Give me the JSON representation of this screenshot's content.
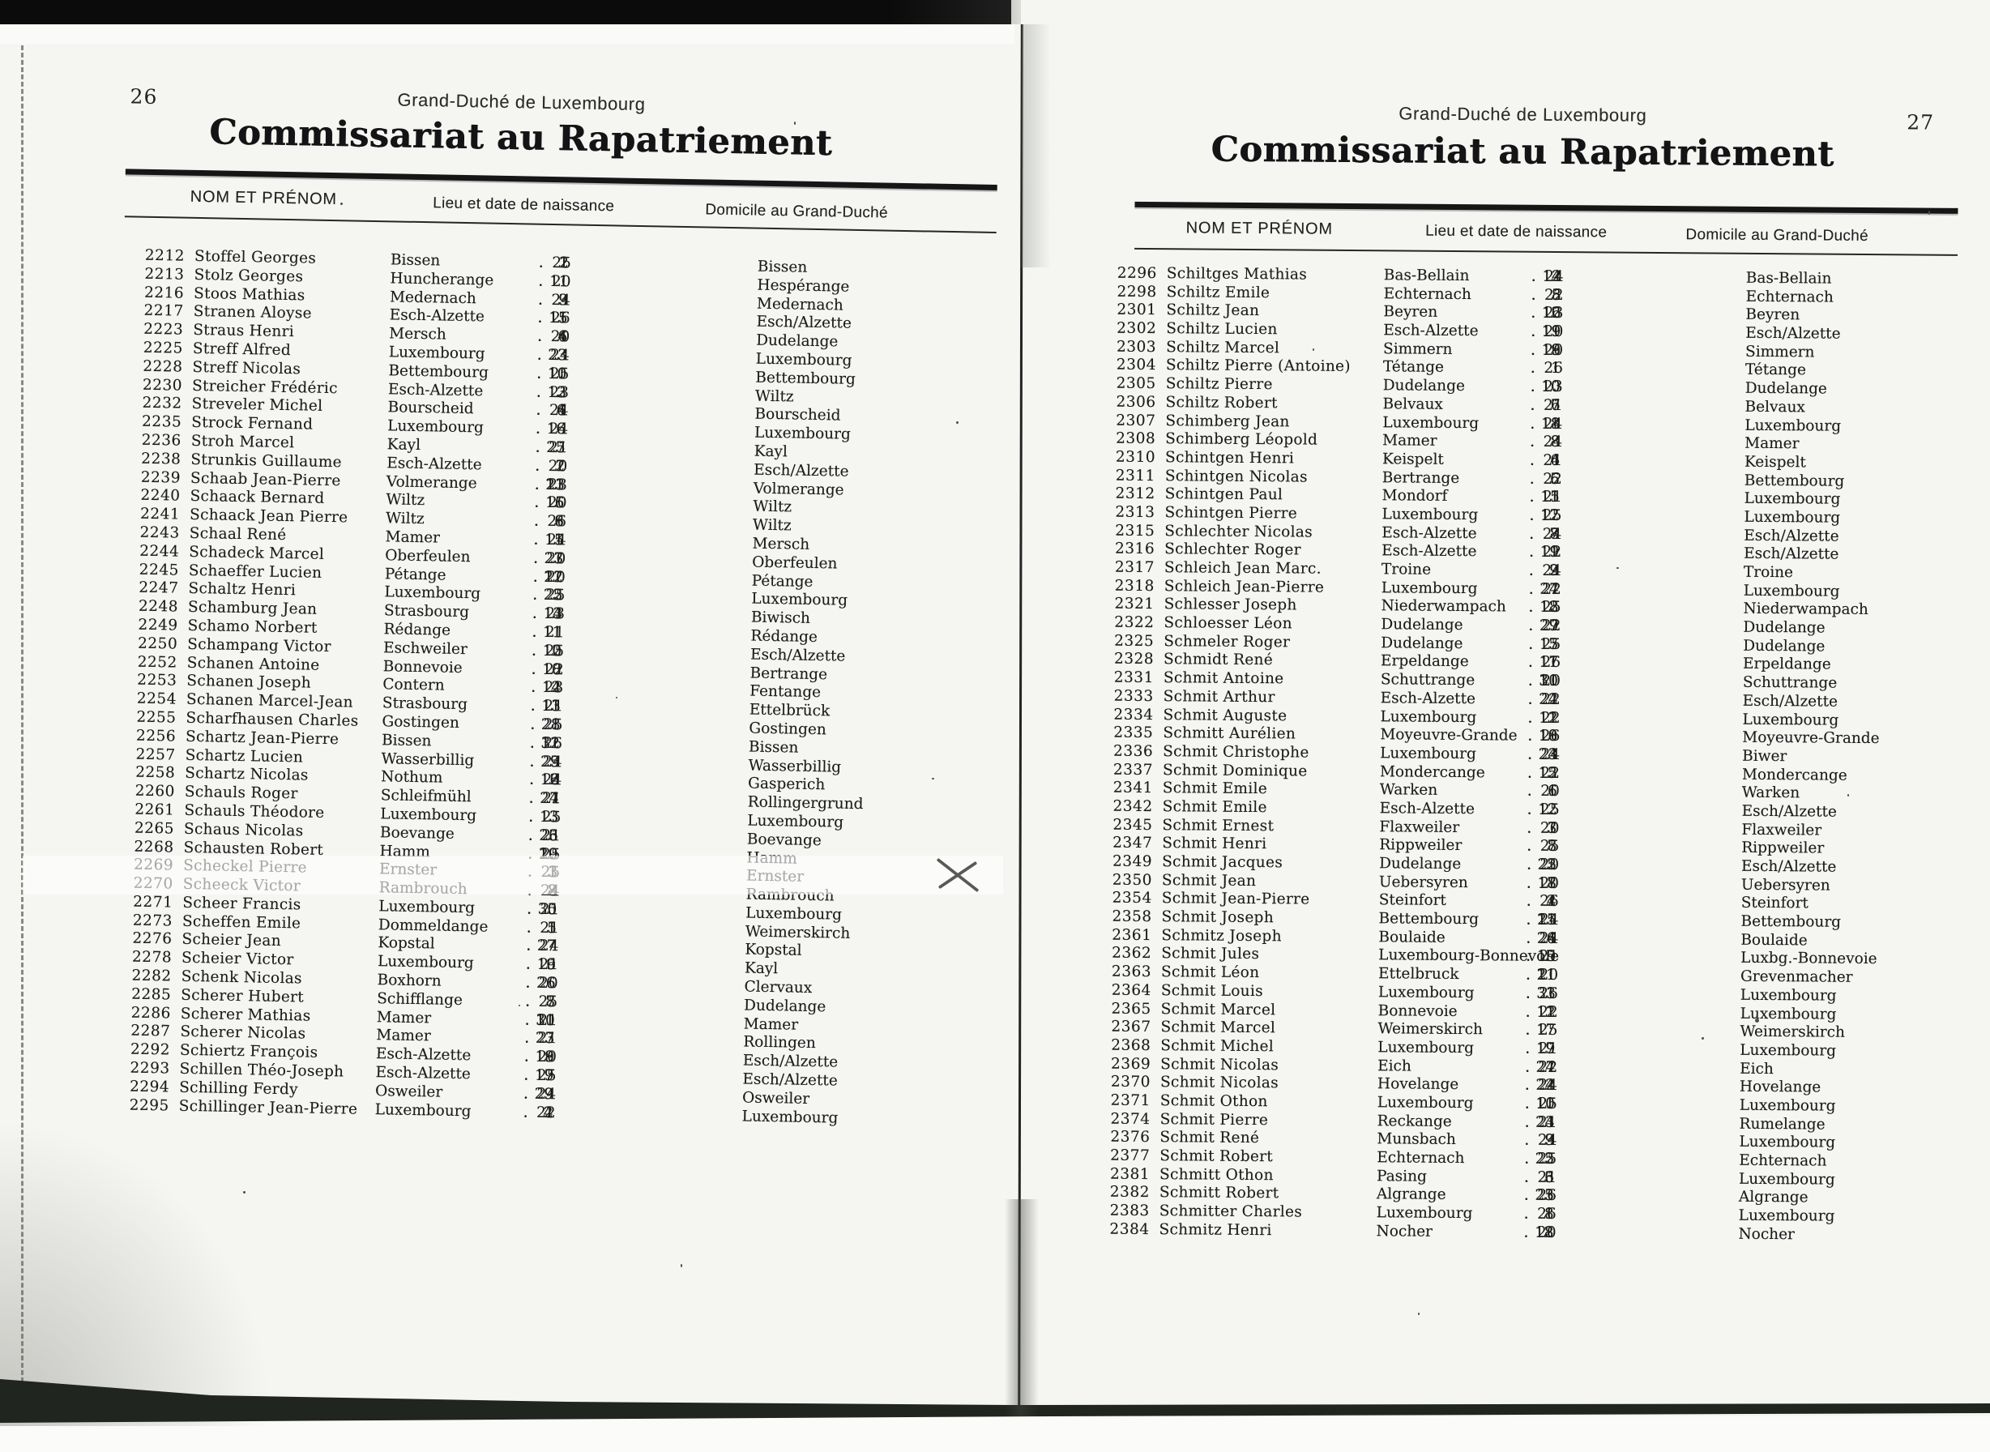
{
  "pages": [
    {
      "page_number": "26",
      "running_head": "Grand-Duché de Luxembourg",
      "title": "Commissariat au Rapatriement",
      "columns": {
        "name": "NOM ET PRÉNOM",
        "birth": "Lieu et date de naissance",
        "domicile": "Domicile au Grand-Duché"
      },
      "rows": [
        [
          "2212",
          "Stoffel Georges",
          "Bissen",
          "2. 1. 25",
          "Bissen"
        ],
        [
          "2213",
          "Stolz Georges",
          "Huncherange",
          "1. 11. 20",
          "Hespérange"
        ],
        [
          "2216",
          "Stoos Mathias",
          "Medernach",
          "9. 3. 24",
          "Medernach"
        ],
        [
          "2217",
          "Stranen Aloyse",
          "Esch-Alzette",
          "15. 11. 26",
          "Esch/Alzette"
        ],
        [
          "2223",
          "Straus Henri",
          "Mersch",
          "4. 6. 20",
          "Dudelange"
        ],
        [
          "2225",
          "Streff Alfred",
          "Luxembourg",
          "23. 3. 24",
          "Luxembourg"
        ],
        [
          "2228",
          "Streff Nicolas",
          "Bettembourg",
          "10. 11. 25",
          "Bettembourg"
        ],
        [
          "2230",
          "Streicher Frédéric",
          "Esch-Alzette",
          "3. 12. 23",
          "Wiltz"
        ],
        [
          "2232",
          "Streveler Michel",
          "Bourscheid",
          "6. 4. 24",
          "Bourscheid"
        ],
        [
          "2235",
          "Strock Fernand",
          "Luxembourg",
          "16. 6. 24",
          "Luxembourg"
        ],
        [
          "2236",
          "Stroh Marcel",
          "Kayl",
          "27. 5. 21",
          "Kayl"
        ],
        [
          "2238",
          "Strunkis Guillaume",
          "Esch-Alzette",
          "7. 2. 20",
          "Esch/Alzette"
        ],
        [
          "2239",
          "Schaab Jean-Pierre",
          "Volmerange",
          "23. 11. 23",
          "Volmerange"
        ],
        [
          "2240",
          "Schaack Bernard",
          "Wiltz",
          "15. 6. 20",
          "Wiltz"
        ],
        [
          "2241",
          "Schaack Jean Pierre",
          "Wiltz",
          "6. 8. 26",
          "Wiltz"
        ],
        [
          "2243",
          "Schaal René",
          "Mamer",
          "15. 1. 24",
          "Mersch"
        ],
        [
          "2244",
          "Schadeck Marcel",
          "Oberfeulen",
          "27. 3. 20",
          "Oberfeulen"
        ],
        [
          "2245",
          "Schaeffer Lucien",
          "Pétange",
          "27. 12. 20",
          "Pétange"
        ],
        [
          "2247",
          "Schaltz Henri",
          "Luxembourg",
          "22. 5. 25",
          "Luxembourg"
        ],
        [
          "2248",
          "Schamburg Jean",
          "Strasbourg",
          "13. 4. 23",
          "Biwisch"
        ],
        [
          "2249",
          "Schamo Norbert",
          "Rédange",
          "1. 11. 21",
          "Rédange"
        ],
        [
          "2250",
          "Schampang Victor",
          "Eschweiler",
          "2. 10. 25",
          "Esch/Alzette"
        ],
        [
          "2252",
          "Schanen Antoine",
          "Bonnevoie",
          "8. 10. 22",
          "Bertrange"
        ],
        [
          "2253",
          "Schanen Joseph",
          "Contern",
          "12. 4. 23",
          "Fentange"
        ],
        [
          "2254",
          "Schanen Marcel-Jean",
          "Strasbourg",
          "13. 11. 21",
          "Ettelbrück"
        ],
        [
          "2255",
          "Scharfhausen Charles",
          "Gostingen",
          "28. 1. 25",
          "Gostingen"
        ],
        [
          "2256",
          "Schartz Jean-Pierre",
          "Bissen",
          "31. 12. 26",
          "Bissen"
        ],
        [
          "2257",
          "Schartz Lucien",
          "Wasserbillig",
          "29. 5. 24",
          "Wasserbillig"
        ],
        [
          "2258",
          "Schartz Nicolas",
          "Nothum",
          "12. 6. 24",
          "Gasperich"
        ],
        [
          "2260",
          "Schauls Roger",
          "Schleifmühl",
          "27. 4. 21",
          "Rollingergrund"
        ],
        [
          "2261",
          "Schauls Théodore",
          "Luxembourg",
          "13. 3. 25",
          "Luxembourg"
        ],
        [
          "2265",
          "Schaus Nicolas",
          "Boevange",
          "26. 3. 21",
          "Boevange"
        ],
        [
          "2268",
          "Schausten Robert",
          "Hamm",
          "29. 10. 25",
          "Hamm"
        ],
        [
          "2269",
          "Scheckel Pierre",
          "Ernster",
          "1. 3. 25",
          "Ernster"
        ],
        [
          "2270",
          "Scheeck Victor",
          "Rambrouch",
          "8. 2. 24",
          "Rambrouch"
        ],
        [
          "2271",
          "Scheer Francis",
          "Luxembourg",
          "30. 5. 21",
          "Luxembourg"
        ],
        [
          "2273",
          "Scheffen Emile",
          "Dommeldange",
          "5. 1. 21",
          "Weimerskirch"
        ],
        [
          "2276",
          "Scheier Jean",
          "Kopstal",
          "27. 7. 24",
          "Kopstal"
        ],
        [
          "2278",
          "Scheier Victor",
          "Luxembourg",
          "16. 9. 21",
          "Kayl"
        ],
        [
          "2282",
          "Schenk Nicolas",
          "Boxhorn",
          "26. 6. 20",
          "Clervaux"
        ],
        [
          "2285",
          "Scherer Hubert",
          "Schifflange",
          "8. 7. 25",
          "Dudelange"
        ],
        [
          "2286",
          "Scherer Mathias",
          "Mamer",
          "30. 11. 21",
          "Mamer"
        ],
        [
          "2287",
          "Scherer Nicolas",
          "Mamer",
          "27. 3. 21",
          "Rollingen"
        ],
        [
          "2292",
          "Schiertz François",
          "Esch-Alzette",
          "18. 9. 20",
          "Esch/Alzette"
        ],
        [
          "2293",
          "Schillen Théo-Joseph",
          "Esch-Alzette",
          "17. 9. 25",
          "Esch/Alzette"
        ],
        [
          "2294",
          "Schilling Ferdy",
          "Osweiler",
          "29. 9. 24",
          "Osweiler"
        ],
        [
          "2295",
          "Schillinger Jean-Pierre",
          "Luxembourg",
          "2. 4. 22",
          "Luxembourg"
        ]
      ]
    },
    {
      "page_number": "27",
      "running_head": "Grand-Duché de Luxembourg",
      "title": "Commissariat au Rapatriement",
      "columns": {
        "name": "NOM ET PRÉNOM",
        "birth": "Lieu et date de naissance",
        "domicile": "Domicile au Grand-Duché"
      },
      "rows": [
        [
          "2296",
          "Schiltges Mathias",
          "Bas-Bellain",
          "4. 12. 24",
          "Bas-Bellain"
        ],
        [
          "2298",
          "Schiltz Emile",
          "Echternach",
          "8. 5. 22",
          "Echternach"
        ],
        [
          "2301",
          "Schiltz Jean",
          "Beyren",
          "16. 12. 23",
          "Beyren"
        ],
        [
          "2302",
          "Schiltz Lucien",
          "Esch-Alzette",
          "19. 11. 20",
          "Esch/Alzette"
        ],
        [
          "2303",
          "Schiltz Marcel",
          "Simmern",
          "19. 8. 20",
          "Simmern"
        ],
        [
          "2304",
          "Schiltz Pierre (Antoine)",
          "Tétange",
          "1. 1. 26",
          "Tétange"
        ],
        [
          "2305",
          "Schiltz Pierre",
          "Dudelange",
          "10. 10. 23",
          "Dudelange"
        ],
        [
          "2306",
          "Schiltz Robert",
          "Belvaux",
          "7. 6. 21",
          "Belvaux"
        ],
        [
          "2307",
          "Schimberg Jean",
          "Luxembourg",
          "8. 11. 24",
          "Luxembourg"
        ],
        [
          "2308",
          "Schimberg Léopold",
          "Mamer",
          "8. 8. 24",
          "Mamer"
        ],
        [
          "2310",
          "Schintgen Henri",
          "Keispelt",
          "4. 6. 21",
          "Keispelt"
        ],
        [
          "2311",
          "Schintgen Nicolas",
          "Bertrange",
          "6. 5. 22",
          "Bettembourg"
        ],
        [
          "2312",
          "Schintgen Paul",
          "Mondorf",
          "15. 1. 21",
          "Luxembourg"
        ],
        [
          "2313",
          "Schintgen Pierre",
          "Luxembourg",
          "17. 12. 25",
          "Luxembourg"
        ],
        [
          "2315",
          "Schlechter Nicolas",
          "Esch-Alzette",
          "8. 7. 24",
          "Esch/Alzette"
        ],
        [
          "2316",
          "Schlechter Roger",
          "Esch-Alzette",
          "11. 9. 22",
          "Esch/Alzette"
        ],
        [
          "2317",
          "Schleich Jean Marc.",
          "Troine",
          "2. 9. 24",
          "Troine"
        ],
        [
          "2318",
          "Schleich Jean-Pierre",
          "Luxembourg",
          "27. 4. 22",
          "Luxembourg"
        ],
        [
          "2321",
          "Schlesser Joseph",
          "Niederwampach",
          "18. 2. 25",
          "Niederwampach"
        ],
        [
          "2322",
          "Schloesser Léon",
          "Dudelange",
          "27. 9. 22",
          "Dudelange"
        ],
        [
          "2325",
          "Schmeler Roger",
          "Dudelange",
          "17. 5. 25",
          "Dudelange"
        ],
        [
          "2328",
          "Schmidt René",
          "Erpeldange",
          "17. 11. 26",
          "Erpeldange"
        ],
        [
          "2331",
          "Schmit Antoine",
          "Schuttrange",
          "31. 10. 20",
          "Schuttrange"
        ],
        [
          "2333",
          "Schmit Arthur",
          "Esch-Alzette",
          "22. 4. 22",
          "Esch/Alzette"
        ],
        [
          "2334",
          "Schmit Auguste",
          "Luxembourg",
          "1. 12. 22",
          "Luxembourg"
        ],
        [
          "2335",
          "Schmitt Aurélien",
          "Moyeuvre-Grande",
          "18. 10. 26",
          "Moyeuvre-Grande"
        ],
        [
          "2336",
          "Schmit Christophe",
          "Luxembourg",
          "23. 4. 24",
          "Biwer"
        ],
        [
          "2337",
          "Schmit Dominique",
          "Mondercange",
          "12. 5. 22",
          "Mondercange"
        ],
        [
          "2341",
          "Schmit Emile",
          "Warken",
          "6. 1. 20",
          "Warken"
        ],
        [
          "2342",
          "Schmit Emile",
          "Esch-Alzette",
          "12. 2. 25",
          "Esch/Alzette"
        ],
        [
          "2345",
          "Schmit Ernest",
          "Flaxweiler",
          "7. 3. 20",
          "Flaxweiler"
        ],
        [
          "2347",
          "Schmit Henri",
          "Rippweiler",
          "7. 8. 25",
          "Rippweiler"
        ],
        [
          "2349",
          "Schmit Jacques",
          "Dudelange",
          "25. 2. 20",
          "Esch/Alzette"
        ],
        [
          "2350",
          "Schmit Jean",
          "Uebersyren",
          "17. 8. 20",
          "Uebersyren"
        ],
        [
          "2354",
          "Schmit Jean-Pierre",
          "Steinfort",
          "4. 2. 26",
          "Steinfort"
        ],
        [
          "2358",
          "Schmit Joseph",
          "Bettembourg",
          "25. 11. 24",
          "Bettembourg"
        ],
        [
          "2361",
          "Schmitz Joseph",
          "Boulaide",
          "24. 6. 24",
          "Boulaide"
        ],
        [
          "2362",
          "Schmit Jules",
          "Luxembourg-Bonnevoie",
          "19. 5. 21",
          "Luxbg.-Bonnevoie"
        ],
        [
          "2363",
          "Schmit Léon",
          "Ettelbruck",
          "21. 11. 20",
          "Grevenmacher"
        ],
        [
          "2364",
          "Schmit Louis",
          "Luxembourg",
          "31. 3. 26",
          "Luxembourg"
        ],
        [
          "2365",
          "Schmit Marcel",
          "Bonnevoie",
          "1. 12. 22",
          "Luxembourg"
        ],
        [
          "2367",
          "Schmit Marcel",
          "Weimerskirch",
          "17. 7. 25",
          "Weimerskirch"
        ],
        [
          "2368",
          "Schmit Michel",
          "Luxembourg",
          "17. 9. 21",
          "Luxembourg"
        ],
        [
          "2369",
          "Schmit Nicolas",
          "Eich",
          "27. 4. 22",
          "Eich"
        ],
        [
          "2370",
          "Schmit Nicolas",
          "Hovelange",
          "24. 2. 24",
          "Hovelange"
        ],
        [
          "2371",
          "Schmit Othon",
          "Luxembourg",
          "11. 10. 25",
          "Luxembourg"
        ],
        [
          "2374",
          "Schmit Pierre",
          "Reckange",
          "23. 4. 21",
          "Rumelange"
        ],
        [
          "2376",
          "Schmit René",
          "Munsbach",
          "9. 3. 24",
          "Luxembourg"
        ],
        [
          "2377",
          "Schmit Robert",
          "Echternach",
          "22. 5. 25",
          "Echternach"
        ],
        [
          "2381",
          "Schmitt Othon",
          "Pasing",
          "3. 6. 21",
          "Luxembourg"
        ],
        [
          "2382",
          "Schmitt Robert",
          "Algrange",
          "25. 3. 26",
          "Algrange"
        ],
        [
          "2383",
          "Schmitter Charles",
          "Luxembourg",
          "1. 8. 26",
          "Luxembourg"
        ],
        [
          "2384",
          "Schmitz Henri",
          "Nocher",
          "18. 2. 20",
          "Nocher"
        ]
      ]
    }
  ]
}
